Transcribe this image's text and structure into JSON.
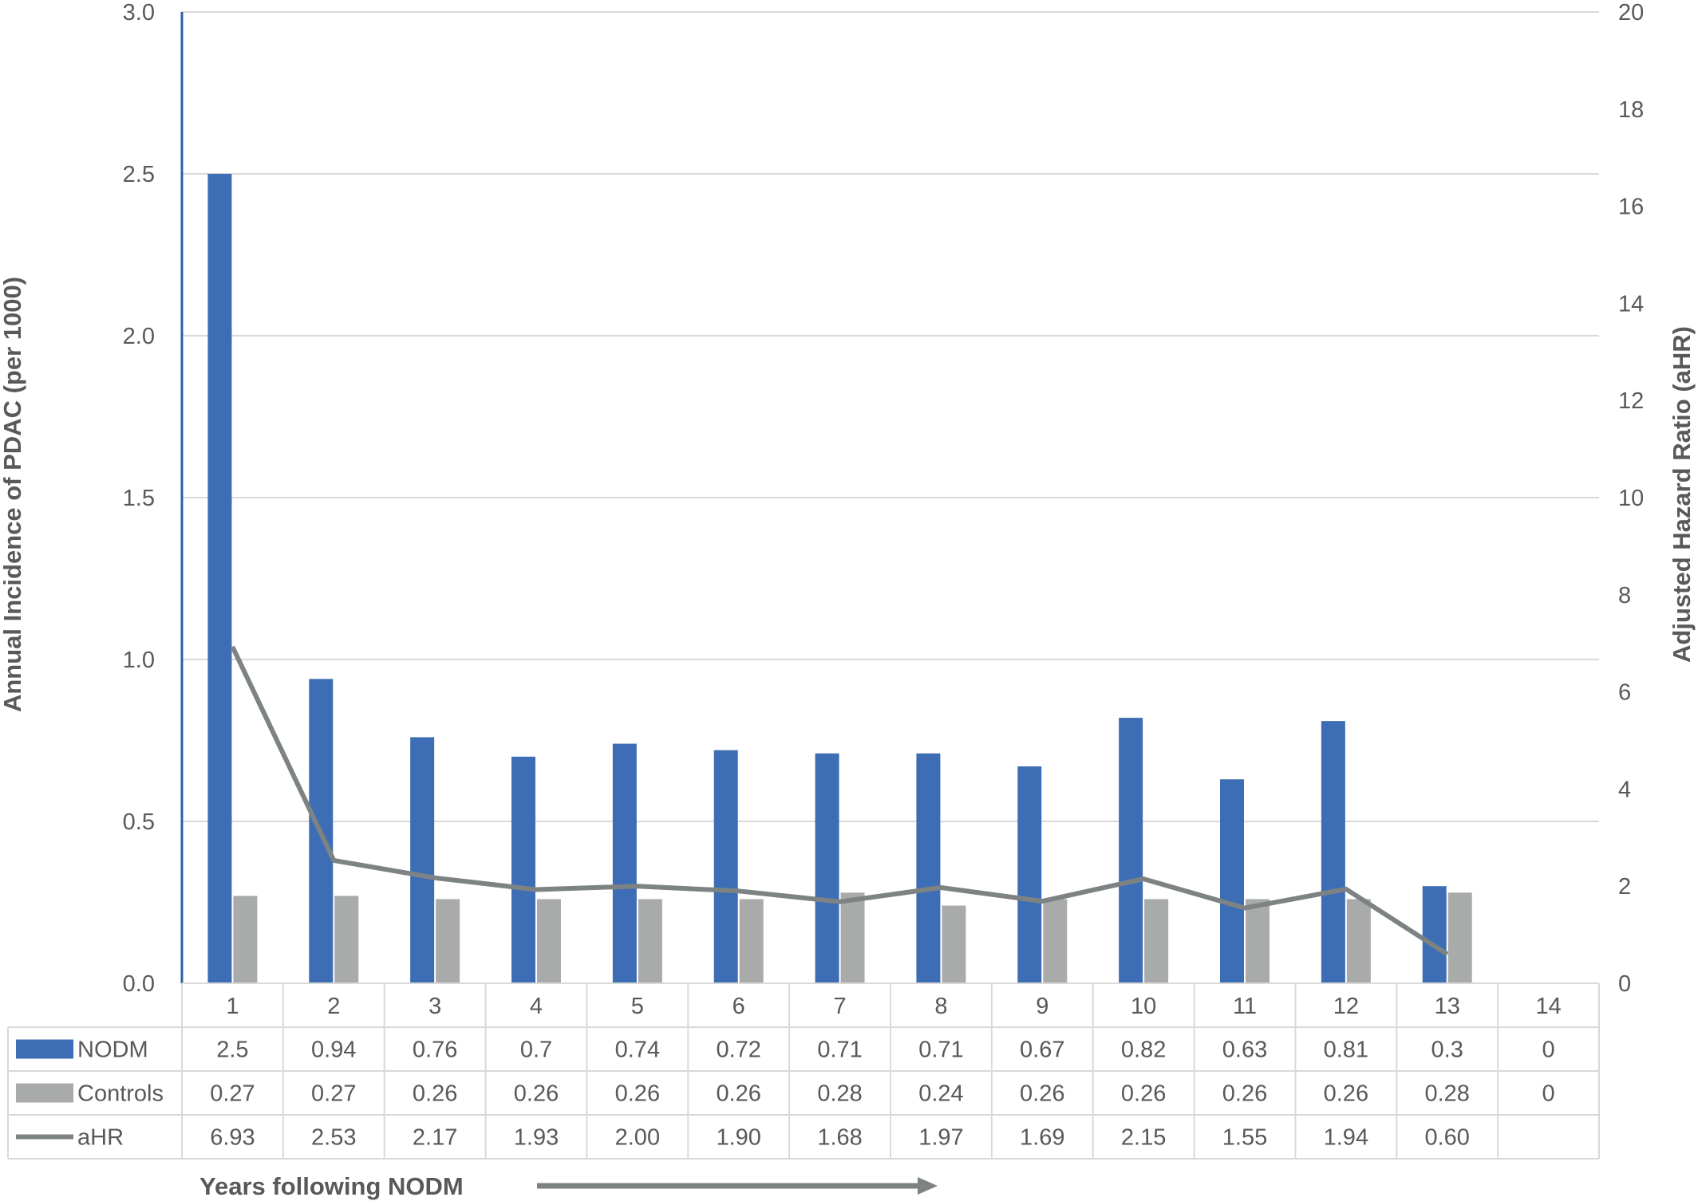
{
  "chart_data": {
    "type": "bar",
    "title": "",
    "xlabel": "Years following NODM",
    "ylabel": "Annual Incidence of PDAC (per 1000)",
    "y2label": "Adjusted Hazard Ratio (aHR)",
    "ylim": [
      0,
      3.0
    ],
    "y2lim": [
      0,
      20
    ],
    "yticks": [
      "0.0",
      "0.5",
      "1.0",
      "1.5",
      "2.0",
      "2.5",
      "3.0"
    ],
    "y2ticks": [
      "0",
      "2",
      "4",
      "6",
      "8",
      "10",
      "12",
      "14",
      "16",
      "18",
      "20"
    ],
    "grid": true,
    "legend": "data-table",
    "categories": [
      "1",
      "2",
      "3",
      "4",
      "5",
      "6",
      "7",
      "8",
      "9",
      "10",
      "11",
      "12",
      "13",
      "14"
    ],
    "series": [
      {
        "name": "NODM",
        "type": "bar",
        "axis": "left",
        "color": "#3d6eb5",
        "values": [
          2.5,
          0.94,
          0.76,
          0.7,
          0.74,
          0.72,
          0.71,
          0.71,
          0.67,
          0.82,
          0.63,
          0.81,
          0.3,
          0
        ],
        "labels": [
          "2.5",
          "0.94",
          "0.76",
          "0.7",
          "0.74",
          "0.72",
          "0.71",
          "0.71",
          "0.67",
          "0.82",
          "0.63",
          "0.81",
          "0.3",
          "0"
        ]
      },
      {
        "name": "Controls",
        "type": "bar",
        "axis": "left",
        "color": "#a9abab",
        "values": [
          0.27,
          0.27,
          0.26,
          0.26,
          0.26,
          0.26,
          0.28,
          0.24,
          0.26,
          0.26,
          0.26,
          0.26,
          0.28,
          0
        ],
        "labels": [
          "0.27",
          "0.27",
          "0.26",
          "0.26",
          "0.26",
          "0.26",
          "0.28",
          "0.24",
          "0.26",
          "0.26",
          "0.26",
          "0.26",
          "0.28",
          "0"
        ]
      },
      {
        "name": "aHR",
        "type": "line",
        "axis": "right",
        "color": "#7d8282",
        "values": [
          6.93,
          2.53,
          2.17,
          1.93,
          2.0,
          1.9,
          1.68,
          1.97,
          1.69,
          2.15,
          1.55,
          1.94,
          0.6,
          null
        ],
        "labels": [
          "6.93",
          "2.53",
          "2.17",
          "1.93",
          "2.00",
          "1.90",
          "1.68",
          "1.97",
          "1.69",
          "2.15",
          "1.55",
          "1.94",
          "0.60",
          ""
        ]
      }
    ]
  },
  "colors": {
    "axis_line": "#2f5fa8",
    "grid": "#d9d9d9",
    "text": "#595959",
    "table_border": "#d9d9d9"
  }
}
